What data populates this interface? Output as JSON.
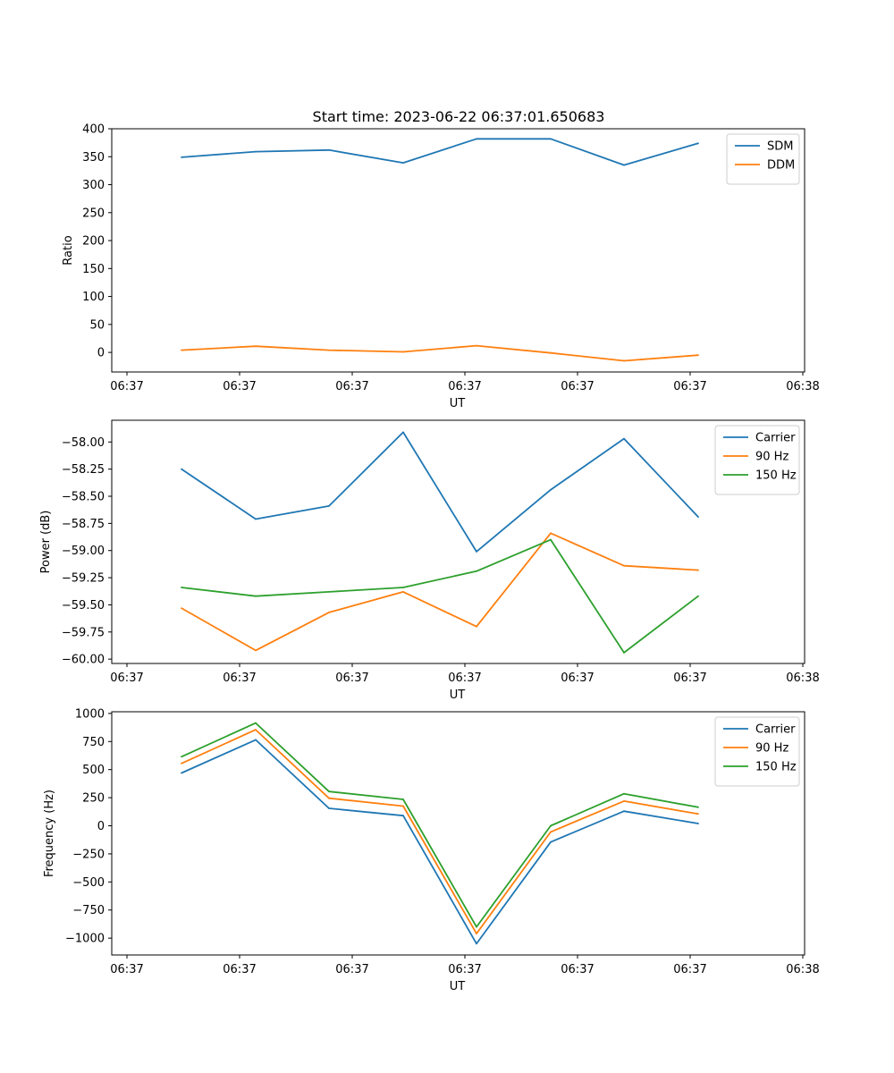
{
  "figure": {
    "title": "Start time: 2023-06-22 06:37:01.650683"
  },
  "chart_data": [
    {
      "type": "line",
      "title": "Start time: 2023-06-22 06:37:01.650683",
      "xlabel": "UT",
      "ylabel": "Ratio",
      "x_tick_labels": [
        "06:37",
        "06:37",
        "06:37",
        "06:37",
        "06:37",
        "06:37",
        "06:38"
      ],
      "y_ticks": [
        0,
        50,
        100,
        150,
        200,
        250,
        300,
        350,
        400
      ],
      "ylim": [
        -35,
        400
      ],
      "legend_position": "top-right",
      "grid": false,
      "series": [
        {
          "name": "SDM",
          "color": "#1f77b4",
          "values": [
            349,
            359,
            362,
            339,
            382,
            382,
            335,
            374
          ]
        },
        {
          "name": "DDM",
          "color": "#ff7f0e",
          "values": [
            4,
            11,
            4,
            1,
            12,
            -1,
            -15,
            -5
          ]
        }
      ]
    },
    {
      "type": "line",
      "title": "",
      "xlabel": "UT",
      "ylabel": "Power (dB)",
      "x_tick_labels": [
        "06:37",
        "06:37",
        "06:37",
        "06:37",
        "06:37",
        "06:37",
        "06:38"
      ],
      "y_ticks": [
        -60.0,
        -59.75,
        -59.5,
        -59.25,
        -59.0,
        -58.75,
        -58.5,
        -58.25,
        -58.0
      ],
      "y_tick_labels": [
        "−60.00",
        "−59.75",
        "−59.50",
        "−59.25",
        "−59.00",
        "−58.75",
        "−58.50",
        "−58.25",
        "−58.00"
      ],
      "ylim": [
        -60.04,
        -57.8
      ],
      "legend_position": "top-right",
      "grid": false,
      "series": [
        {
          "name": "Carrier",
          "color": "#1f77b4",
          "values": [
            -58.25,
            -58.71,
            -58.59,
            -57.91,
            -59.01,
            -58.44,
            -57.97,
            -58.69
          ]
        },
        {
          "name": "90 Hz",
          "color": "#ff7f0e",
          "values": [
            -59.53,
            -59.92,
            -59.57,
            -59.38,
            -59.7,
            -58.84,
            -59.14,
            -59.18
          ]
        },
        {
          "name": "150 Hz",
          "color": "#2ca02c",
          "values": [
            -59.34,
            -59.42,
            -59.38,
            -59.34,
            -59.19,
            -58.9,
            -59.94,
            -59.42
          ]
        }
      ]
    },
    {
      "type": "line",
      "title": "",
      "xlabel": "UT",
      "ylabel": "Frequency (Hz)",
      "x_tick_labels": [
        "06:37",
        "06:37",
        "06:37",
        "06:37",
        "06:37",
        "06:37",
        "06:38"
      ],
      "y_ticks": [
        -1000,
        -750,
        -500,
        -250,
        0,
        250,
        500,
        750,
        1000
      ],
      "y_tick_labels": [
        "−1000",
        "−750",
        "−500",
        "−250",
        "0",
        "250",
        "500",
        "750",
        "1000"
      ],
      "ylim": [
        -1150,
        1015
      ],
      "legend_position": "top-right",
      "grid": false,
      "series": [
        {
          "name": "Carrier",
          "color": "#1f77b4",
          "values": [
            470,
            765,
            155,
            90,
            -1050,
            -145,
            130,
            20
          ]
        },
        {
          "name": "90 Hz",
          "color": "#ff7f0e",
          "values": [
            555,
            855,
            245,
            175,
            -960,
            -55,
            220,
            105
          ]
        },
        {
          "name": "150 Hz",
          "color": "#2ca02c",
          "values": [
            615,
            915,
            305,
            235,
            -900,
            0,
            285,
            165
          ]
        }
      ]
    }
  ]
}
